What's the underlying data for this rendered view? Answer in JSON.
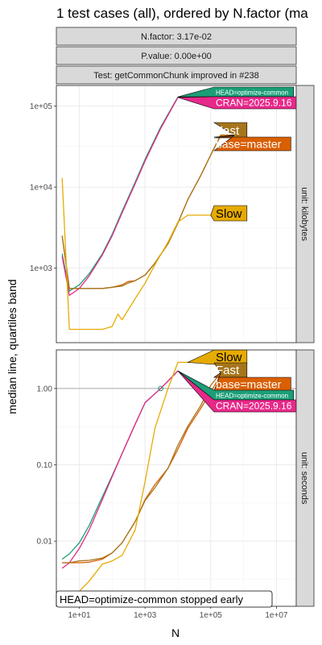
{
  "chart_data": {
    "type": "line",
    "title": "1 test cases (all), ordered by N.factor (ma",
    "xlabel": "N",
    "ylabel": "median line, quartiles band",
    "x_scale": "log10",
    "x_ticks": [
      10,
      1000,
      100000,
      10000000
    ],
    "x_tick_labels": [
      "1e+01",
      "1e+03",
      "1e+05",
      "1e+07"
    ],
    "xlim": [
      2,
      40000000
    ],
    "strips": [
      "N.factor: 3.17e-02",
      "P.value: 0.00e+00",
      "Test: getCommonChunk improved in #238"
    ],
    "colors": {
      "HEAD=optimize-common": "#1b9e77",
      "CRAN=2025.9.16": "#e7298a",
      "base=master": "#d95f02",
      "Fast": "#a6761d",
      "Slow": "#e6ab02"
    },
    "note": "HEAD=optimize-common stopped early",
    "panels": [
      {
        "unit_label": "unit: kilobytes",
        "y_scale": "log10",
        "ylim": [
          120,
          180000
        ],
        "y_ticks": [
          1000,
          10000,
          100000
        ],
        "y_tick_labels": [
          "1e+03",
          "1e+04",
          "1e+05"
        ],
        "series": [
          {
            "name": "HEAD=optimize-common",
            "x": [
              3,
              5,
              10,
              20,
              50,
              100,
              200,
              500,
              1000,
              3000,
              10000
            ],
            "y": [
              1500,
              520,
              620,
              850,
              1500,
              2600,
              5000,
              11500,
              22000,
              55000,
              130000
            ]
          },
          {
            "name": "CRAN=2025.9.16",
            "x": [
              3,
              5,
              10,
              20,
              50,
              100,
              200,
              500,
              1000,
              3000,
              10000
            ],
            "y": [
              1400,
              460,
              560,
              800,
              1450,
              2500,
              4800,
              11000,
              21000,
              53000,
              128000
            ]
          },
          {
            "name": "base=master",
            "x": [
              3,
              5,
              10,
              20,
              50,
              100,
              200,
              300,
              500,
              1000,
              2000,
              5000,
              10000,
              20000,
              50000,
              100000,
              200000,
              500000
            ],
            "y": [
              2500,
              560,
              560,
              560,
              560,
              580,
              620,
              680,
              700,
              820,
              1150,
              2000,
              3600,
              7000,
              14000,
              25000,
              43000,
              43000
            ]
          },
          {
            "name": "Fast",
            "x": [
              3,
              5,
              10,
              20,
              50,
              100,
              200,
              300,
              500,
              1000,
              2000,
              5000,
              10000,
              20000,
              50000,
              100000,
              200000,
              500000
            ],
            "y": [
              2500,
              560,
              560,
              560,
              560,
              580,
              600,
              650,
              700,
              820,
              1150,
              2000,
              3600,
              7000,
              14000,
              25000,
              44000,
              44000
            ]
          },
          {
            "name": "Slow",
            "x": [
              3,
              5,
              10,
              20,
              50,
              100,
              150,
              200,
              300,
              500,
              1000,
              2000,
              5000,
              10000,
              20000,
              40000,
              100000
            ],
            "y": [
              13000,
              175,
              175,
              175,
              175,
              190,
              270,
              230,
              300,
              420,
              650,
              1100,
              2100,
              3700,
              4500,
              4500,
              4500
            ]
          }
        ],
        "labels": [
          {
            "text": "HEAD=optimize-common",
            "series": "HEAD=optimize-common",
            "anchor_x": 10000,
            "anchor_y": 130000
          },
          {
            "text": "CRAN=2025.9.16",
            "series": "CRAN=2025.9.16",
            "anchor_x": 10000,
            "anchor_y": 128000
          },
          {
            "text": "Fast",
            "series": "Fast",
            "anchor_x": 500000,
            "anchor_y": 44000
          },
          {
            "text": "base=master",
            "series": "base=master",
            "anchor_x": 500000,
            "anchor_y": 43000
          },
          {
            "text": "Slow",
            "series": "Slow",
            "anchor_x": 100000,
            "anchor_y": 4500
          }
        ]
      },
      {
        "unit_label": "unit: seconds",
        "y_scale": "log10",
        "ylim": [
          0.0014,
          3.2
        ],
        "y_ticks": [
          0.01,
          0.1,
          1
        ],
        "y_tick_labels": [
          "0.01",
          "0.10",
          "1.00"
        ],
        "hline": 1,
        "series": [
          {
            "name": "HEAD=optimize-common",
            "x": [
              3,
              5,
              10,
              20,
              50,
              100,
              200,
              500,
              1000,
              3000,
              10000
            ],
            "y": [
              0.0058,
              0.0068,
              0.0095,
              0.016,
              0.038,
              0.072,
              0.14,
              0.34,
              0.65,
              1.0,
              1.7
            ]
          },
          {
            "name": "CRAN=2025.9.16",
            "x": [
              3,
              5,
              10,
              20,
              50,
              100,
              200,
              500,
              1000,
              3000,
              10000
            ],
            "y": [
              0.0044,
              0.0052,
              0.008,
              0.014,
              0.035,
              0.07,
              0.14,
              0.34,
              0.65,
              1.0,
              1.7
            ]
          },
          {
            "name": "base=master",
            "x": [
              3,
              5,
              10,
              20,
              50,
              100,
              200,
              500,
              1000,
              2000,
              5000,
              10000,
              20000,
              50000,
              100000,
              200000,
              500000
            ],
            "y": [
              0.0052,
              0.0052,
              0.0052,
              0.0053,
              0.0058,
              0.007,
              0.0095,
              0.018,
              0.035,
              0.055,
              0.09,
              0.16,
              0.3,
              0.55,
              0.9,
              1.5,
              1.6
            ]
          },
          {
            "name": "Fast",
            "x": [
              3,
              5,
              10,
              20,
              50,
              100,
              200,
              500,
              1000,
              2000,
              5000,
              10000,
              20000,
              50000,
              100000,
              200000,
              500000
            ],
            "y": [
              0.0052,
              0.0052,
              0.0055,
              0.0056,
              0.006,
              0.007,
              0.0095,
              0.018,
              0.034,
              0.05,
              0.09,
              0.18,
              0.32,
              0.6,
              1.1,
              1.6,
              1.6
            ]
          },
          {
            "name": "Slow",
            "x": [
              3,
              5,
              10,
              20,
              50,
              100,
              200,
              500,
              1000,
              2000,
              5000,
              10000,
              20000,
              50000,
              100000
            ],
            "y": [
              0.0014,
              0.0016,
              0.0022,
              0.003,
              0.005,
              0.0055,
              0.0065,
              0.014,
              0.06,
              0.3,
              1.0,
              2.2,
              2.2,
              2.2,
              2.2
            ]
          }
        ],
        "labels": [
          {
            "text": "Slow",
            "series": "Slow",
            "anchor_x": 20000,
            "anchor_y": 2.2
          },
          {
            "text": "Fast",
            "series": "Fast",
            "anchor_x": 200000,
            "anchor_y": 1.6
          },
          {
            "text": "base=master",
            "series": "base=master",
            "anchor_x": 200000,
            "anchor_y": 1.6
          },
          {
            "text": "HEAD=optimize-common",
            "series": "HEAD=optimize-common",
            "anchor_x": 10000,
            "anchor_y": 1.7
          },
          {
            "text": "CRAN=2025.9.16",
            "series": "CRAN=2025.9.16",
            "anchor_x": 10000,
            "anchor_y": 1.7
          }
        ],
        "marker": {
          "series": "HEAD=optimize-common",
          "x": 3000,
          "y": 1.0
        }
      }
    ]
  }
}
